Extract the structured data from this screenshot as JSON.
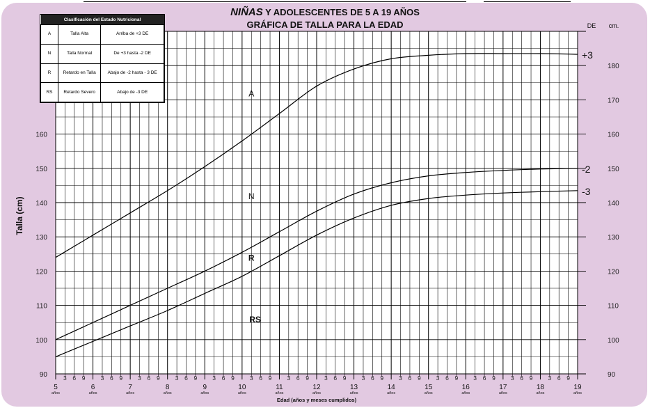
{
  "chart_data": {
    "type": "line",
    "title_italic": "NIÑAS",
    "title_rest": " Y ADOLESCENTES DE 5 A 19 AÑOS",
    "subtitle": "GRÁFICA DE TALLA PARA LA EDAD",
    "ylabel": "Talla (cm)",
    "xlabel": "Edad (años y meses cumplidos)",
    "right_header_de": "DE",
    "right_header_cm": "cm.",
    "xlim": [
      5,
      19
    ],
    "ylim": [
      90,
      190
    ],
    "x_ticks": [
      5,
      6,
      7,
      8,
      9,
      10,
      11,
      12,
      13,
      14,
      15,
      16,
      17,
      18,
      19
    ],
    "x_tick_labels": [
      "5",
      "6",
      "7",
      "8",
      "9",
      "10",
      "11",
      "12",
      "13",
      "14",
      "15",
      "16",
      "17",
      "18",
      "19"
    ],
    "x_tick_sublabel": "años",
    "x_month_labels": [
      "3",
      "6",
      "9"
    ],
    "y_ticks_left": [
      90,
      100,
      110,
      120,
      130,
      140,
      150,
      160
    ],
    "y_ticks_right": [
      90,
      100,
      110,
      120,
      130,
      140,
      150,
      160,
      170,
      180
    ],
    "series": [
      {
        "name": "+3",
        "x": [
          5,
          6,
          7,
          8,
          9,
          10,
          11,
          12,
          13,
          14,
          15,
          16,
          17,
          18,
          19
        ],
        "values": [
          124,
          130.5,
          137,
          143.5,
          150.5,
          158,
          166,
          174,
          179,
          182,
          183,
          183.5,
          183.5,
          183.5,
          183.3
        ]
      },
      {
        "name": "-2",
        "x": [
          5,
          6,
          7,
          8,
          9,
          10,
          11,
          12,
          13,
          14,
          15,
          16,
          17,
          18,
          19
        ],
        "values": [
          100,
          105,
          110,
          115,
          120,
          125.5,
          131.5,
          137.5,
          142.5,
          145.8,
          147.8,
          148.8,
          149.4,
          149.8,
          150
        ]
      },
      {
        "name": "-3",
        "x": [
          5,
          6,
          7,
          8,
          9,
          10,
          11,
          12,
          13,
          14,
          15,
          16,
          17,
          18,
          19
        ],
        "values": [
          95,
          99.5,
          104,
          108.5,
          113.5,
          118.5,
          124.5,
          130.5,
          135.5,
          139.2,
          141.2,
          142.2,
          142.8,
          143.2,
          143.5
        ]
      }
    ],
    "zone_labels": [
      {
        "text": "A",
        "x": 10.25,
        "y": 171,
        "bold": false
      },
      {
        "text": "N",
        "x": 10.25,
        "y": 141,
        "bold": false
      },
      {
        "text": "R",
        "x": 10.25,
        "y": 123,
        "bold": true
      },
      {
        "text": "RS",
        "x": 10.35,
        "y": 105,
        "bold": true
      }
    ],
    "grid": true
  },
  "legend": {
    "title": "Clasificación del Estado Nutricional",
    "rows": [
      {
        "code": "A",
        "label": "Talla Alta",
        "desc": "Arriba de +3 DE"
      },
      {
        "code": "N",
        "label": "Talla Normal",
        "desc": "De +3 hasta -2 DE"
      },
      {
        "code": "R",
        "label": "Retardo en Talla",
        "desc": "Abajo de -2 hasta - 3 DE"
      },
      {
        "code": "RS",
        "label": "Retardo Severo",
        "desc": "Abajo de -3 DE"
      }
    ]
  },
  "colors": {
    "background": "#e2c9e1",
    "plot": "#ffffff",
    "line": "#000000"
  }
}
